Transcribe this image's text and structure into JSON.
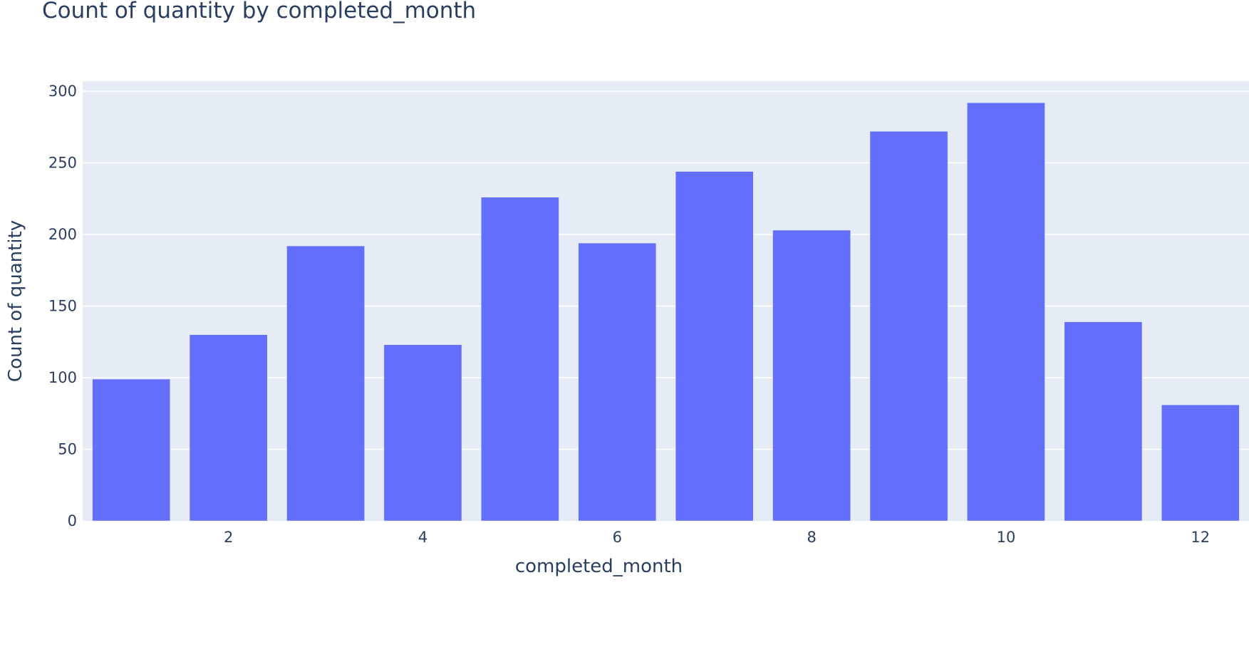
{
  "chart_data": {
    "type": "bar",
    "title": "Count of quantity by completed_month",
    "xlabel": "completed_month",
    "ylabel": "Count of quantity",
    "x": [
      1,
      2,
      3,
      4,
      5,
      6,
      7,
      8,
      9,
      10,
      11,
      12
    ],
    "values": [
      99,
      130,
      192,
      123,
      226,
      194,
      244,
      203,
      272,
      292,
      139,
      81
    ],
    "xlim": [
      0.5,
      12.5
    ],
    "ylim": [
      0,
      307
    ],
    "xticks": [
      2,
      4,
      6,
      8,
      10,
      12
    ],
    "yticks": [
      0,
      50,
      100,
      150,
      200,
      250,
      300
    ],
    "grid": true,
    "colors": {
      "bar": "#636efa",
      "plot_bg": "#e5ecf6",
      "grid": "#ffffff",
      "text": "#2a3f5f"
    }
  }
}
